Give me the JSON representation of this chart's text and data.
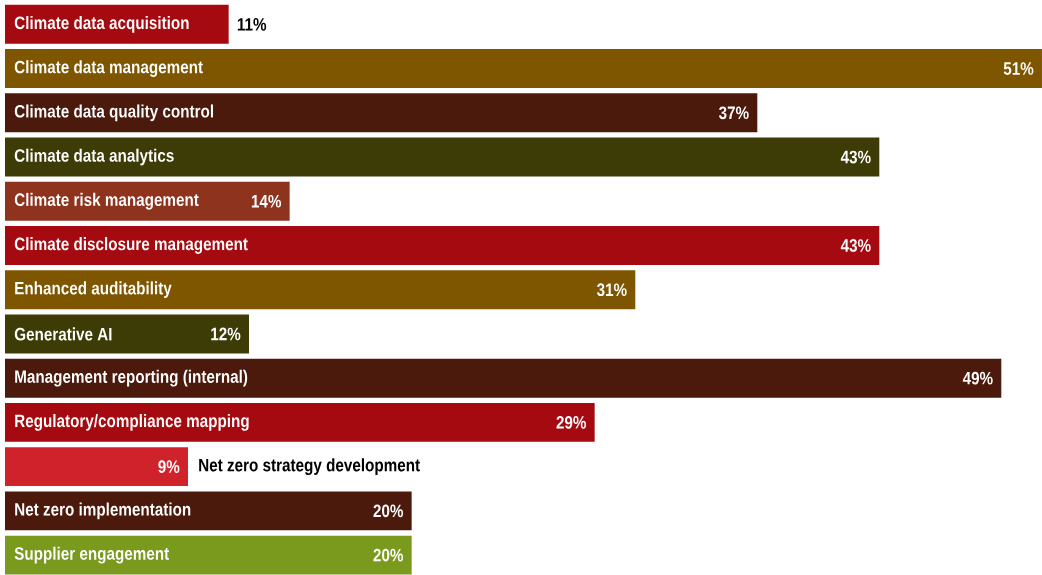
{
  "chart_data": {
    "type": "bar",
    "orientation": "horizontal",
    "categories": [
      "Climate data acquisition",
      "Climate data management",
      "Climate data quality control",
      "Climate data analytics",
      "Climate risk management",
      "Climate disclosure management",
      "Enhanced auditability",
      "Generative AI",
      "Management reporting (internal)",
      "Regulatory/compliance mapping",
      "Net zero strategy development",
      "Net zero implementation",
      "Supplier engagement"
    ],
    "values": [
      11,
      51,
      37,
      43,
      14,
      43,
      31,
      12,
      49,
      29,
      9,
      20,
      20
    ],
    "value_labels": [
      "11%",
      "51%",
      "37%",
      "43%",
      "14%",
      "43%",
      "31%",
      "12%",
      "49%",
      "29%",
      "9%",
      "20%",
      "20%"
    ],
    "colors": [
      "#a50a10",
      "#7f5600",
      "#4c1a0c",
      "#3d3c06",
      "#8e331e",
      "#a50a10",
      "#7f5600",
      "#3d3c06",
      "#4c1a0c",
      "#a50a10",
      "#d0222a",
      "#4c1a0c",
      "#7a9a1e"
    ]
  }
}
